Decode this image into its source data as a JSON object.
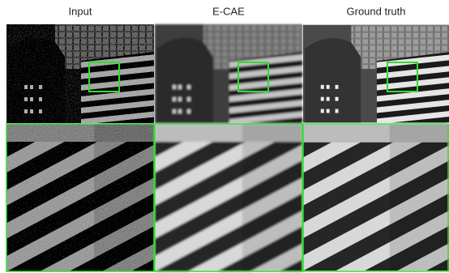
{
  "columns": [
    {
      "title": "Input"
    },
    {
      "title": "E-CAE"
    },
    {
      "title": "Ground truth"
    }
  ]
}
